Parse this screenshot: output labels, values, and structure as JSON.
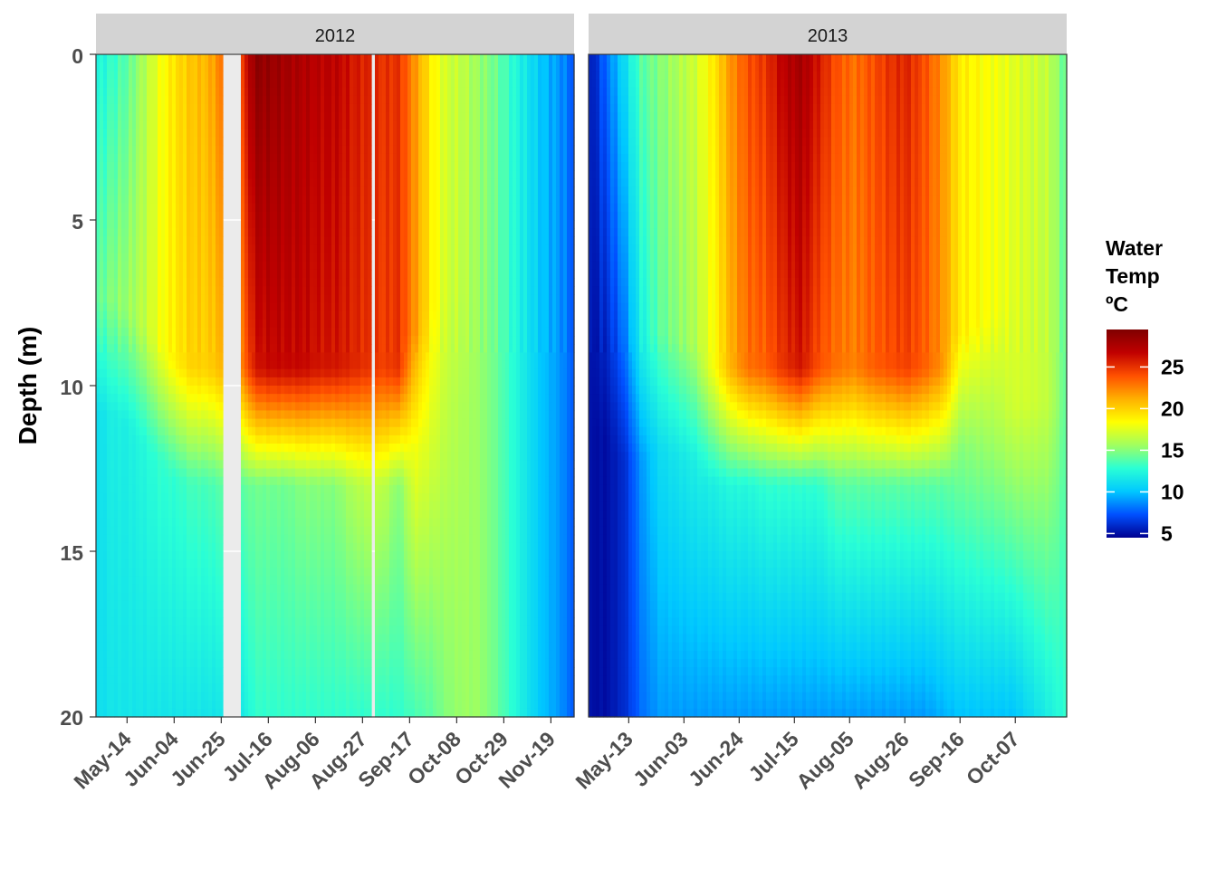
{
  "chart_data": {
    "type": "heatmap",
    "ylabel": "Depth (m)",
    "y_reversed": true,
    "ylim": [
      0,
      20
    ],
    "y_ticks": [
      "0",
      "5",
      "10",
      "15",
      "20"
    ],
    "legend": {
      "title_lines": [
        "Water",
        "Temp",
        "ºC"
      ],
      "placement": "right",
      "range": [
        4.5,
        29.5
      ],
      "ticks": [
        "5",
        "10",
        "15",
        "20",
        "25"
      ],
      "colors": [
        "#000090",
        "#0050ff",
        "#00c8ff",
        "#2affd5",
        "#a0ff60",
        "#ffff00",
        "#ffb000",
        "#ff5000",
        "#c00000",
        "#800000"
      ]
    },
    "panels": [
      {
        "strip": "2012",
        "x_ticks": [
          "May-14",
          "Jun-04",
          "Jun-25",
          "Jul-16",
          "Aug-06",
          "Aug-27",
          "Sep-17",
          "Oct-08",
          "Oct-29",
          "Nov-19"
        ],
        "profiles": [
          {
            "day": "May-02",
            "top": 12,
            "surf": 14,
            "thermo": 11,
            "bottom": 11
          },
          {
            "day": "May-09",
            "top": 13,
            "surf": 15,
            "thermo": 12,
            "bottom": 11.5
          },
          {
            "day": "May-14",
            "top": 14,
            "surf": 15.5,
            "thermo": 12,
            "bottom": 11.5
          },
          {
            "day": "May-20",
            "top": 16,
            "surf": 16.5,
            "thermo": 12.5,
            "bottom": 11.5
          },
          {
            "day": "May-26",
            "top": 18,
            "surf": 18,
            "thermo": 13,
            "bottom": 11.5
          },
          {
            "day": "Jun-01",
            "top": 19.5,
            "surf": 19,
            "thermo": 13,
            "bottom": 11.5
          },
          {
            "day": "Jun-07",
            "top": 20.5,
            "surf": 20,
            "thermo": 13.5,
            "bottom": 11.5
          },
          {
            "day": "Jun-13",
            "top": 21,
            "surf": 20,
            "thermo": 13.5,
            "bottom": 11.5
          },
          {
            "day": "Jun-19",
            "top": 23,
            "surf": 21,
            "thermo": 14,
            "bottom": 11.5
          },
          {
            "day": "Jun-24",
            "top": 24,
            "surf": 22,
            "thermo": 14,
            "bottom": 11.5
          },
          {
            "day": "Jul-03",
            "top": 29,
            "surf": 26,
            "thermo": 14.5,
            "bottom": 13
          },
          {
            "day": "Jul-08",
            "top": 28.5,
            "surf": 26.5,
            "thermo": 14.5,
            "bottom": 13
          },
          {
            "day": "Jul-16",
            "top": 28,
            "surf": 26.5,
            "thermo": 14.5,
            "bottom": 13
          },
          {
            "day": "Jul-24",
            "top": 27.5,
            "surf": 26.5,
            "thermo": 15,
            "bottom": 13
          },
          {
            "day": "Jul-30",
            "top": 27,
            "surf": 26,
            "thermo": 15,
            "bottom": 13
          },
          {
            "day": "Aug-06",
            "top": 27,
            "surf": 26,
            "thermo": 15,
            "bottom": 13
          },
          {
            "day": "Aug-12",
            "top": 26,
            "surf": 25.5,
            "thermo": 16,
            "bottom": 13
          },
          {
            "day": "Aug-18",
            "top": 25.5,
            "surf": 25,
            "thermo": 16.5,
            "bottom": 13
          },
          {
            "day": "Aug-24",
            "top": 25,
            "surf": 24.5,
            "thermo": 16.5,
            "bottom": 13
          },
          {
            "day": "Aug-29",
            "top": 25,
            "surf": 25,
            "thermo": 15,
            "bottom": 13
          },
          {
            "day": "Sep-05",
            "top": 22,
            "surf": 22,
            "thermo": 18,
            "bottom": 13.5
          },
          {
            "day": "Sep-12",
            "top": 19,
            "surf": 19,
            "thermo": 17.5,
            "bottom": 14
          },
          {
            "day": "Sep-18",
            "top": 17,
            "surf": 17,
            "thermo": 16.5,
            "bottom": 15
          },
          {
            "day": "Sep-25",
            "top": 16.5,
            "surf": 16.5,
            "thermo": 16,
            "bottom": 15.5
          },
          {
            "day": "Oct-03",
            "top": 15.5,
            "surf": 15.5,
            "thermo": 15.5,
            "bottom": 15.5
          },
          {
            "day": "Oct-11",
            "top": 14.5,
            "surf": 14.5,
            "thermo": 14.5,
            "bottom": 14.5
          },
          {
            "day": "Oct-20",
            "top": 13,
            "surf": 13,
            "thermo": 13,
            "bottom": 13
          },
          {
            "day": "Oct-29",
            "top": 11.5,
            "surf": 11.5,
            "thermo": 11.5,
            "bottom": 11.5
          },
          {
            "day": "Nov-07",
            "top": 10,
            "surf": 10,
            "thermo": 10,
            "bottom": 10
          },
          {
            "day": "Nov-16",
            "top": 9,
            "surf": 9,
            "thermo": 9,
            "bottom": 9
          },
          {
            "day": "Nov-24",
            "top": 7.5,
            "surf": 7.5,
            "thermo": 7.5,
            "bottom": 7.5
          }
        ]
      },
      {
        "strip": "2013",
        "x_ticks": [
          "May-13",
          "Jun-03",
          "Jun-24",
          "Jul-15",
          "Aug-05",
          "Aug-26",
          "Sep-16",
          "Oct-07"
        ],
        "profiles": [
          {
            "day": "Apr-29",
            "top": 5,
            "surf": 5,
            "thermo": 5,
            "bottom": 5
          },
          {
            "day": "May-04",
            "top": 8,
            "surf": 6,
            "thermo": 5,
            "bottom": 5
          },
          {
            "day": "May-10",
            "top": 11,
            "surf": 8,
            "thermo": 6,
            "bottom": 6
          },
          {
            "day": "May-16",
            "top": 14,
            "surf": 12,
            "thermo": 9,
            "bottom": 8
          },
          {
            "day": "May-23",
            "top": 15,
            "surf": 14,
            "thermo": 11,
            "bottom": 9
          },
          {
            "day": "May-30",
            "top": 16,
            "surf": 15,
            "thermo": 11.5,
            "bottom": 9
          },
          {
            "day": "Jun-06",
            "top": 17,
            "surf": 16,
            "thermo": 12,
            "bottom": 9
          },
          {
            "day": "Jun-13",
            "top": 19,
            "surf": 18,
            "thermo": 12,
            "bottom": 9
          },
          {
            "day": "Jun-20",
            "top": 22,
            "surf": 21,
            "thermo": 12.5,
            "bottom": 9
          },
          {
            "day": "Jun-26",
            "top": 24,
            "surf": 23,
            "thermo": 12.5,
            "bottom": 9
          },
          {
            "day": "Jul-03",
            "top": 25,
            "surf": 23.5,
            "thermo": 13,
            "bottom": 9
          },
          {
            "day": "Jul-10",
            "top": 27,
            "surf": 25,
            "thermo": 13,
            "bottom": 9
          },
          {
            "day": "Jul-16",
            "top": 28,
            "surf": 26,
            "thermo": 13,
            "bottom": 9
          },
          {
            "day": "Jul-22",
            "top": 26,
            "surf": 24,
            "thermo": 13,
            "bottom": 9
          },
          {
            "day": "Jul-30",
            "top": 24,
            "surf": 23,
            "thermo": 14,
            "bottom": 9
          },
          {
            "day": "Aug-06",
            "top": 23,
            "surf": 22.5,
            "thermo": 14,
            "bottom": 9
          },
          {
            "day": "Aug-13",
            "top": 24,
            "surf": 23.5,
            "thermo": 14,
            "bottom": 9
          },
          {
            "day": "Aug-20",
            "top": 25,
            "surf": 24,
            "thermo": 14,
            "bottom": 9
          },
          {
            "day": "Aug-27",
            "top": 25.5,
            "surf": 24.5,
            "thermo": 14,
            "bottom": 9
          },
          {
            "day": "Sep-03",
            "top": 24,
            "surf": 23.5,
            "thermo": 14,
            "bottom": 9
          },
          {
            "day": "Sep-10",
            "top": 22,
            "surf": 22,
            "thermo": 14,
            "bottom": 9.5
          },
          {
            "day": "Sep-17",
            "top": 19,
            "surf": 19,
            "thermo": 15,
            "bottom": 10
          },
          {
            "day": "Sep-24",
            "top": 18.5,
            "surf": 18.5,
            "thermo": 15.5,
            "bottom": 10
          },
          {
            "day": "Oct-01",
            "top": 18,
            "surf": 18,
            "thermo": 16,
            "bottom": 10
          },
          {
            "day": "Oct-08",
            "top": 17.5,
            "surf": 17.5,
            "thermo": 17,
            "bottom": 10
          },
          {
            "day": "Oct-15",
            "top": 17,
            "surf": 17,
            "thermo": 17,
            "bottom": 11
          },
          {
            "day": "Oct-21",
            "top": 16.5,
            "surf": 16.5,
            "thermo": 16.5,
            "bottom": 12
          },
          {
            "day": "Oct-27",
            "top": 14,
            "surf": 14,
            "thermo": 14,
            "bottom": 13
          }
        ]
      }
    ]
  }
}
